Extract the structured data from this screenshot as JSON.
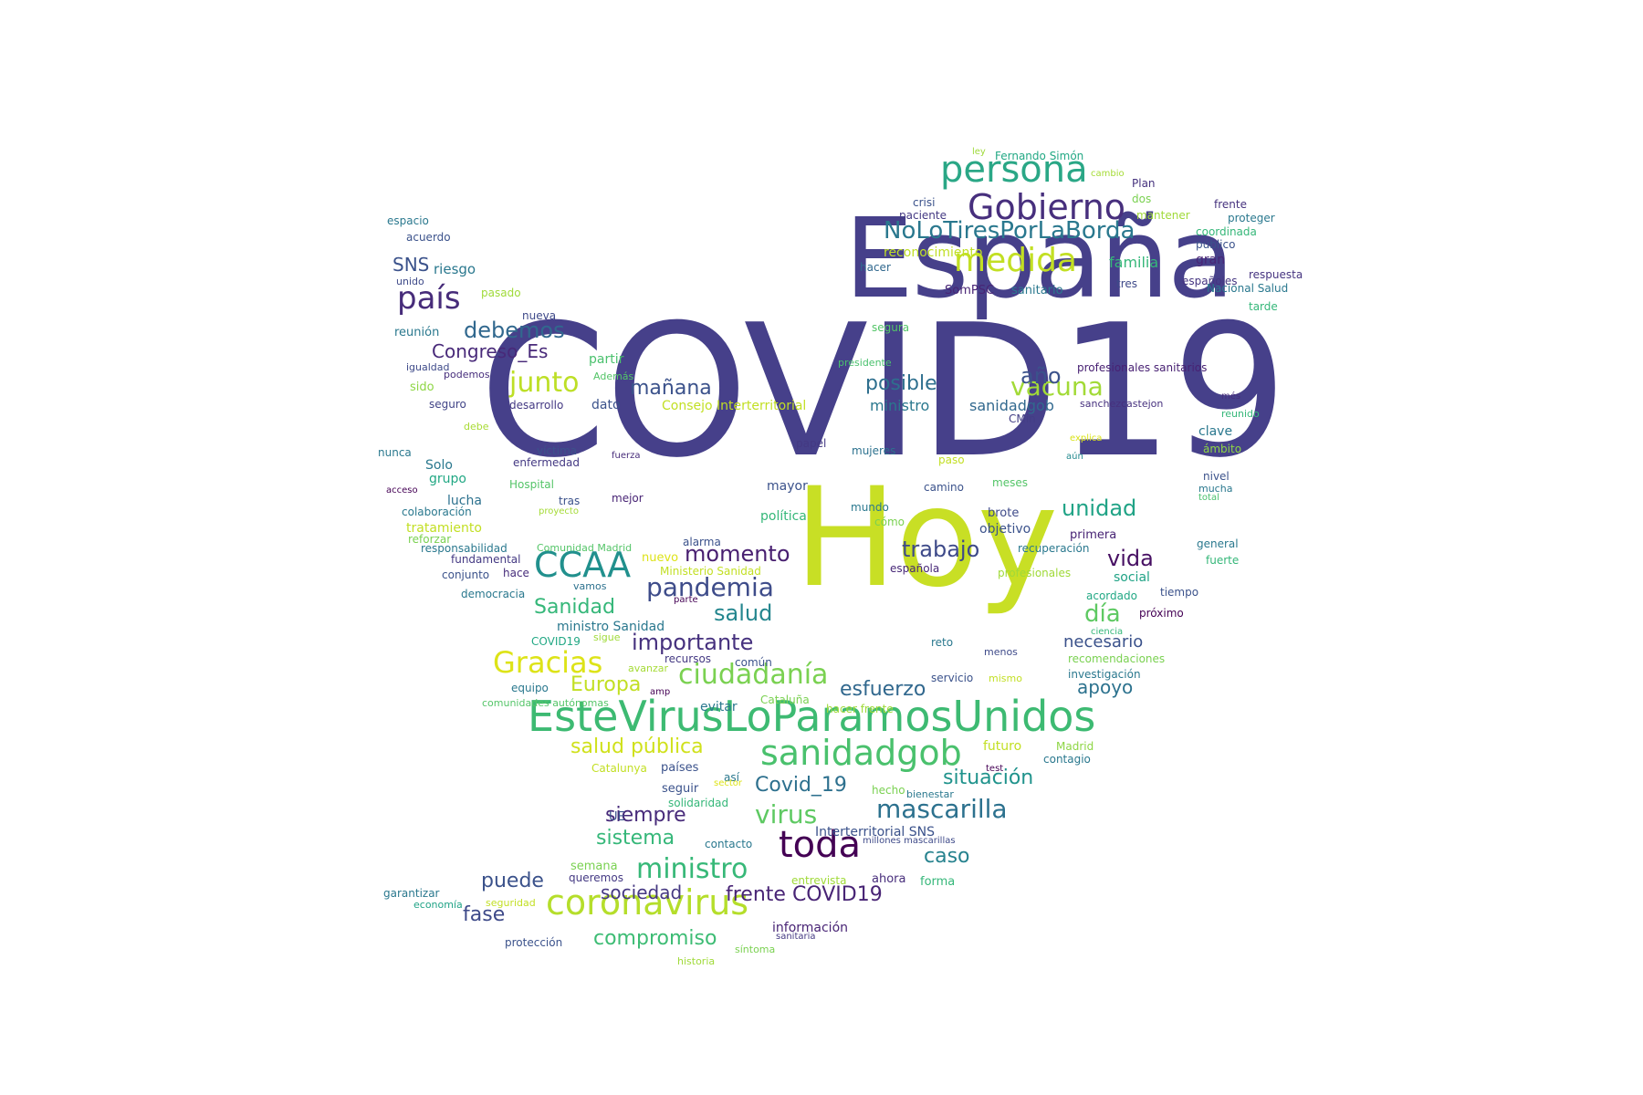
{
  "word_cloud": {
    "words": [
      {
        "text": "COVID19",
        "color": "#46408a"
      },
      {
        "text": "España",
        "color": "#46408a"
      },
      {
        "text": "Hoy",
        "color": "#c8df25"
      },
      {
        "text": "EsteVirusLoParamosUnidos",
        "color": "#3dba72"
      },
      {
        "text": "persona",
        "color": "#2aa786"
      },
      {
        "text": "Gobierno",
        "color": "#472f7d"
      },
      {
        "text": "medida",
        "color": "#c2df23"
      },
      {
        "text": "NoLoTiresPorLaBorda",
        "color": "#2a788e"
      },
      {
        "text": "toda",
        "color": "#440154"
      },
      {
        "text": "coronavirus",
        "color": "#b5de2b"
      },
      {
        "text": "CCAA",
        "color": "#21908d"
      },
      {
        "text": "sanidadgob",
        "color": "#4ac16d"
      },
      {
        "text": "país",
        "color": "#472c7a"
      },
      {
        "text": "Gracias",
        "color": "#dde318"
      },
      {
        "text": "pandemia",
        "color": "#3e4c8a"
      },
      {
        "text": "ciudadanía",
        "color": "#7ad151"
      },
      {
        "text": "ministro",
        "color": "#37b878"
      },
      {
        "text": "mascarilla",
        "color": "#2c718e"
      },
      {
        "text": "junto",
        "color": "#bddf26"
      },
      {
        "text": "vacuna",
        "color": "#a2da37"
      },
      {
        "text": "virus",
        "color": "#5ec962"
      },
      {
        "text": "debemos",
        "color": "#31688e"
      },
      {
        "text": "año",
        "color": "#3b528b"
      },
      {
        "text": "momento",
        "color": "#481f70"
      },
      {
        "text": "importante",
        "color": "#46317e"
      },
      {
        "text": "salud",
        "color": "#24868e"
      },
      {
        "text": "trabajo",
        "color": "#3e4a89"
      },
      {
        "text": "vida",
        "color": "#471063"
      },
      {
        "text": "día",
        "color": "#5ec962"
      },
      {
        "text": "unidad",
        "color": "#20a386"
      },
      {
        "text": "posible",
        "color": "#2e6f8e"
      },
      {
        "text": "mañana",
        "color": "#3b528b"
      },
      {
        "text": "Sanidad",
        "color": "#35b779"
      },
      {
        "text": "esfuerzo",
        "color": "#31688e"
      },
      {
        "text": "situación",
        "color": "#20938c"
      },
      {
        "text": "Covid_19",
        "color": "#2d708e"
      },
      {
        "text": "siempre",
        "color": "#472a7a"
      },
      {
        "text": "sistema",
        "color": "#35b779"
      },
      {
        "text": "puede",
        "color": "#3b528b"
      },
      {
        "text": "caso",
        "color": "#26828e"
      },
      {
        "text": "frente COVID19",
        "color": "#482475"
      },
      {
        "text": "sociedad",
        "color": "#453882"
      },
      {
        "text": "fase",
        "color": "#3e4a89"
      },
      {
        "text": "compromiso",
        "color": "#3dbc74"
      },
      {
        "text": "apoyo",
        "color": "#2c728e"
      },
      {
        "text": "necesario",
        "color": "#3b528b"
      },
      {
        "text": "salud pública",
        "color": "#d0e11c"
      },
      {
        "text": "Europa",
        "color": "#c2df23"
      },
      {
        "text": "Congreso_Es",
        "color": "#482979"
      },
      {
        "text": "SNS",
        "color": "#3b528b"
      },
      {
        "text": "familia",
        "color": "#35b779"
      },
      {
        "text": "ministro",
        "color": "#2a788e"
      },
      {
        "text": "sanidadgob",
        "color": "#31688e"
      },
      {
        "text": "riesgo",
        "color": "#2a788e"
      },
      {
        "text": "gran",
        "color": "#482576"
      },
      {
        "text": "Fernando Simón",
        "color": "#22a884"
      },
      {
        "text": "ley",
        "color": "#9fda3a"
      },
      {
        "text": "cambio",
        "color": "#a5db36"
      },
      {
        "text": "Plan",
        "color": "#46327e"
      },
      {
        "text": "crisi",
        "color": "#3b528b"
      },
      {
        "text": "paciente",
        "color": "#443983"
      },
      {
        "text": "dos",
        "color": "#7ad151"
      },
      {
        "text": "frente",
        "color": "#46327e"
      },
      {
        "text": "mantener",
        "color": "#a0da39"
      },
      {
        "text": "proteger",
        "color": "#2a788e"
      },
      {
        "text": "coordinada",
        "color": "#35b779"
      },
      {
        "text": "público",
        "color": "#3b528b"
      },
      {
        "text": "reconocimiento",
        "color": "#c0df25"
      },
      {
        "text": "hacer",
        "color": "#31688e"
      },
      {
        "text": "respuesta",
        "color": "#463480"
      },
      {
        "text": "españoles",
        "color": "#453581"
      },
      {
        "text": "Nacional Salud",
        "color": "#2a788e"
      },
      {
        "text": "tres",
        "color": "#3e4989"
      },
      {
        "text": "SomPSC",
        "color": "#482475"
      },
      {
        "text": "sanitario",
        "color": "#2a788e"
      },
      {
        "text": "tarde",
        "color": "#35b779"
      },
      {
        "text": "segura",
        "color": "#54c568"
      },
      {
        "text": "presidente",
        "color": "#4ac16d"
      },
      {
        "text": "profesionales sanitarios",
        "color": "#482173"
      },
      {
        "text": "espacio",
        "color": "#2a788e"
      },
      {
        "text": "acuerdo",
        "color": "#3b528b"
      },
      {
        "text": "unido",
        "color": "#3e4a89"
      },
      {
        "text": "pasado",
        "color": "#a0da39"
      },
      {
        "text": "nueva",
        "color": "#3e4989"
      },
      {
        "text": "reunión",
        "color": "#2a788e"
      },
      {
        "text": "partir",
        "color": "#4ac16d"
      },
      {
        "text": "igualdad",
        "color": "#3e4a89"
      },
      {
        "text": "podemos",
        "color": "#472e7c"
      },
      {
        "text": "sido",
        "color": "#8ed645"
      },
      {
        "text": "Además",
        "color": "#54c568"
      },
      {
        "text": "seguro",
        "color": "#414487"
      },
      {
        "text": "desarrollo",
        "color": "#443983"
      },
      {
        "text": "dato",
        "color": "#3b528b"
      },
      {
        "text": "Consejo Interterritorial",
        "color": "#c2df23"
      },
      {
        "text": "sanchezcastejon",
        "color": "#46307e"
      },
      {
        "text": "més",
        "color": "#472d7b"
      },
      {
        "text": "CMin",
        "color": "#433e85"
      },
      {
        "text": "reunido",
        "color": "#35b779"
      },
      {
        "text": "debe",
        "color": "#a8db34"
      },
      {
        "text": "clave",
        "color": "#2a788e"
      },
      {
        "text": "explica",
        "color": "#dae319"
      },
      {
        "text": "aún",
        "color": "#23898e"
      },
      {
        "text": "ámbito",
        "color": "#8ed645"
      },
      {
        "text": "papel",
        "color": "#443983"
      },
      {
        "text": "mujeres",
        "color": "#2c718e"
      },
      {
        "text": "nunca",
        "color": "#2a788e"
      },
      {
        "text": "víctima",
        "color": "#3b528b"
      },
      {
        "text": "fuerza",
        "color": "#472c7a"
      },
      {
        "text": "enfermedad",
        "color": "#443983"
      },
      {
        "text": "Solo",
        "color": "#2a788e"
      },
      {
        "text": "paso",
        "color": "#c2df23"
      },
      {
        "text": "nivel",
        "color": "#3b528b"
      },
      {
        "text": "grupo",
        "color": "#22a884"
      },
      {
        "text": "mayor",
        "color": "#3b528b"
      },
      {
        "text": "Hospital",
        "color": "#54c568"
      },
      {
        "text": "acceso",
        "color": "#440154"
      },
      {
        "text": "meses",
        "color": "#54c568"
      },
      {
        "text": "camino",
        "color": "#3b528b"
      },
      {
        "text": "mucha",
        "color": "#2a788e"
      },
      {
        "text": "total",
        "color": "#4ac16d"
      },
      {
        "text": "lucha",
        "color": "#2c718e"
      },
      {
        "text": "tras",
        "color": "#3b528b"
      },
      {
        "text": "mejor",
        "color": "#482475"
      },
      {
        "text": "colaboración",
        "color": "#2a788e"
      },
      {
        "text": "proyecto",
        "color": "#a5db36"
      },
      {
        "text": "mundo",
        "color": "#2a788e"
      },
      {
        "text": "cómo",
        "color": "#7ad151"
      },
      {
        "text": "brote",
        "color": "#3e4a89"
      },
      {
        "text": "tratamiento",
        "color": "#c2df23"
      },
      {
        "text": "política",
        "color": "#35b779"
      },
      {
        "text": "objetivo",
        "color": "#3b528b"
      },
      {
        "text": "primera",
        "color": "#482475"
      },
      {
        "text": "reforzar",
        "color": "#7ad151"
      },
      {
        "text": "responsabilidad",
        "color": "#2a788e"
      },
      {
        "text": "Comunidad Madrid",
        "color": "#54c568"
      },
      {
        "text": "alarma",
        "color": "#3b528b"
      },
      {
        "text": "recuperación",
        "color": "#2a788e"
      },
      {
        "text": "general",
        "color": "#2a788e"
      },
      {
        "text": "fundamental",
        "color": "#443983"
      },
      {
        "text": "nuevo",
        "color": "#dde318"
      },
      {
        "text": "fuerte",
        "color": "#35b779"
      },
      {
        "text": "conjunto",
        "color": "#3b528b"
      },
      {
        "text": "hace",
        "color": "#472d7b"
      },
      {
        "text": "Ministerio Sanidad",
        "color": "#c2df23"
      },
      {
        "text": "española",
        "color": "#482878"
      },
      {
        "text": "profesionales",
        "color": "#a0da39"
      },
      {
        "text": "social",
        "color": "#20a386"
      },
      {
        "text": "vamos",
        "color": "#2c718e"
      },
      {
        "text": "democracia",
        "color": "#2a788e"
      },
      {
        "text": "parte",
        "color": "#440154"
      },
      {
        "text": "acordado",
        "color": "#22a884"
      },
      {
        "text": "tiempo",
        "color": "#3b528b"
      },
      {
        "text": "próximo",
        "color": "#440154"
      },
      {
        "text": "ministro Sanidad",
        "color": "#2a788e"
      },
      {
        "text": "ciencia",
        "color": "#35b779"
      },
      {
        "text": "COVID19",
        "color": "#22a884"
      },
      {
        "text": "sigue",
        "color": "#a0da39"
      },
      {
        "text": "reto",
        "color": "#2a788e"
      },
      {
        "text": "menos",
        "color": "#3e4a89"
      },
      {
        "text": "recursos",
        "color": "#443983"
      },
      {
        "text": "avanzar",
        "color": "#a5db36"
      },
      {
        "text": "común",
        "color": "#3b528b"
      },
      {
        "text": "recomendaciones",
        "color": "#7ad151"
      },
      {
        "text": "servicio",
        "color": "#3b528b"
      },
      {
        "text": "mismo",
        "color": "#c2df23"
      },
      {
        "text": "investigación",
        "color": "#2a788e"
      },
      {
        "text": "equipo",
        "color": "#2a788e"
      },
      {
        "text": "amp",
        "color": "#440154"
      },
      {
        "text": "comunidades autónomas",
        "color": "#54c568"
      },
      {
        "text": "evitar",
        "color": "#2a788e"
      },
      {
        "text": "Cataluña",
        "color": "#7ad151"
      },
      {
        "text": "hacer frente",
        "color": "#a0da39"
      },
      {
        "text": "futuro",
        "color": "#c2df23"
      },
      {
        "text": "Madrid",
        "color": "#8ed645"
      },
      {
        "text": "contagio",
        "color": "#2a788e"
      },
      {
        "text": "países",
        "color": "#3b528b"
      },
      {
        "text": "Catalunya",
        "color": "#c2df23"
      },
      {
        "text": "así",
        "color": "#2a788e"
      },
      {
        "text": "test",
        "color": "#440154"
      },
      {
        "text": "seguir",
        "color": "#3b528b"
      },
      {
        "text": "sector",
        "color": "#dde318"
      },
      {
        "text": "hecho",
        "color": "#7ad151"
      },
      {
        "text": "bienestar",
        "color": "#2a788e"
      },
      {
        "text": "solidaridad",
        "color": "#35b779"
      },
      {
        "text": "UE",
        "color": "#3b528b"
      },
      {
        "text": "Interterritorial SNS",
        "color": "#3b528b"
      },
      {
        "text": "millones mascarillas",
        "color": "#3e4a89"
      },
      {
        "text": "contacto",
        "color": "#2a788e"
      },
      {
        "text": "semana",
        "color": "#7ad151"
      },
      {
        "text": "queremos",
        "color": "#443983"
      },
      {
        "text": "entrevista",
        "color": "#a0da39"
      },
      {
        "text": "ahora",
        "color": "#472d7b"
      },
      {
        "text": "forma",
        "color": "#35b779"
      },
      {
        "text": "garantizar",
        "color": "#2a788e"
      },
      {
        "text": "economía",
        "color": "#20a386"
      },
      {
        "text": "seguridad",
        "color": "#c2df23"
      },
      {
        "text": "información",
        "color": "#482475"
      },
      {
        "text": "sanitaria",
        "color": "#443983"
      },
      {
        "text": "protección",
        "color": "#3b528b"
      },
      {
        "text": "síntoma",
        "color": "#7ad151"
      },
      {
        "text": "historia",
        "color": "#a0da39"
      }
    ]
  }
}
